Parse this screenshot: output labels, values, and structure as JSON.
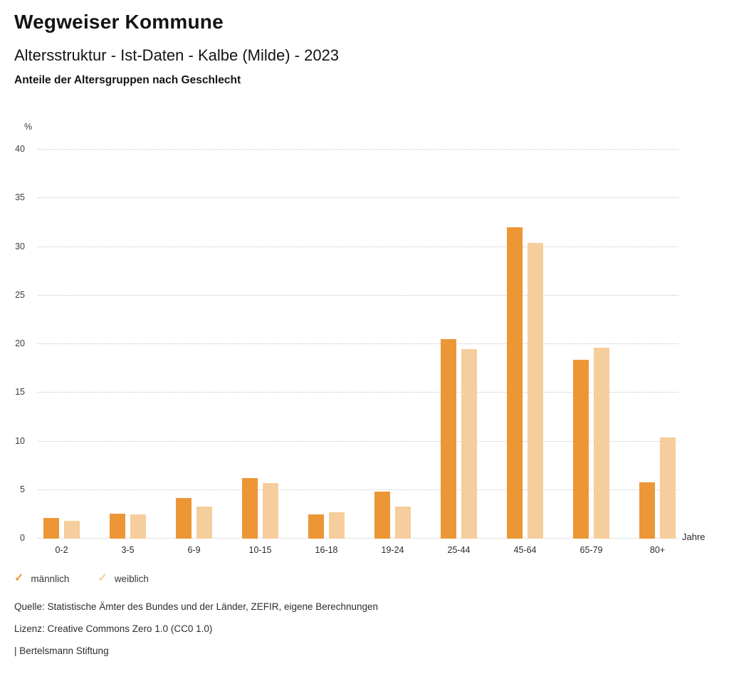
{
  "header": {
    "title": "Wegweiser Kommune",
    "subtitle": "Altersstruktur - Ist-Daten - Kalbe (Milde) - 2023",
    "caption": "Anteile der Altersgruppen nach Geschlecht"
  },
  "chart_data": {
    "type": "bar",
    "title": "Anteile der Altersgruppen nach Geschlecht",
    "categories": [
      "0-2",
      "3-5",
      "6-9",
      "10-15",
      "16-18",
      "19-24",
      "25-44",
      "45-64",
      "65-79",
      "80+"
    ],
    "series": [
      {
        "name": "männlich",
        "color": "#EC9636",
        "values": [
          2.1,
          2.6,
          4.2,
          6.2,
          2.5,
          4.8,
          20.5,
          32.0,
          18.4,
          5.8
        ]
      },
      {
        "name": "weiblich",
        "color": "#F6CD9C",
        "values": [
          1.8,
          2.5,
          3.3,
          5.7,
          2.7,
          3.3,
          19.5,
          30.4,
          19.6,
          10.4
        ]
      }
    ],
    "y_unit": "%",
    "x_unit": "Jahre",
    "ylim": [
      0,
      40
    ],
    "ytick_step": 5,
    "yticks": [
      0,
      5,
      10,
      15,
      20,
      25,
      30,
      35,
      40
    ],
    "grid": "horizontal-dotted",
    "legend_position": "bottom-left"
  },
  "legend": {
    "check_icon": "✓",
    "items": [
      {
        "label": "männlich",
        "color": "#EC9636",
        "checked": true
      },
      {
        "label": "weiblich",
        "color": "#F6CD9C",
        "checked": true
      }
    ]
  },
  "footer": {
    "source": "Quelle: Statistische Ämter des Bundes und der Länder, ZEFIR, eigene Berechnungen",
    "license": "Lizenz: Creative Commons Zero 1.0 (CC0 1.0)",
    "attribution": "| Bertelsmann Stiftung"
  }
}
